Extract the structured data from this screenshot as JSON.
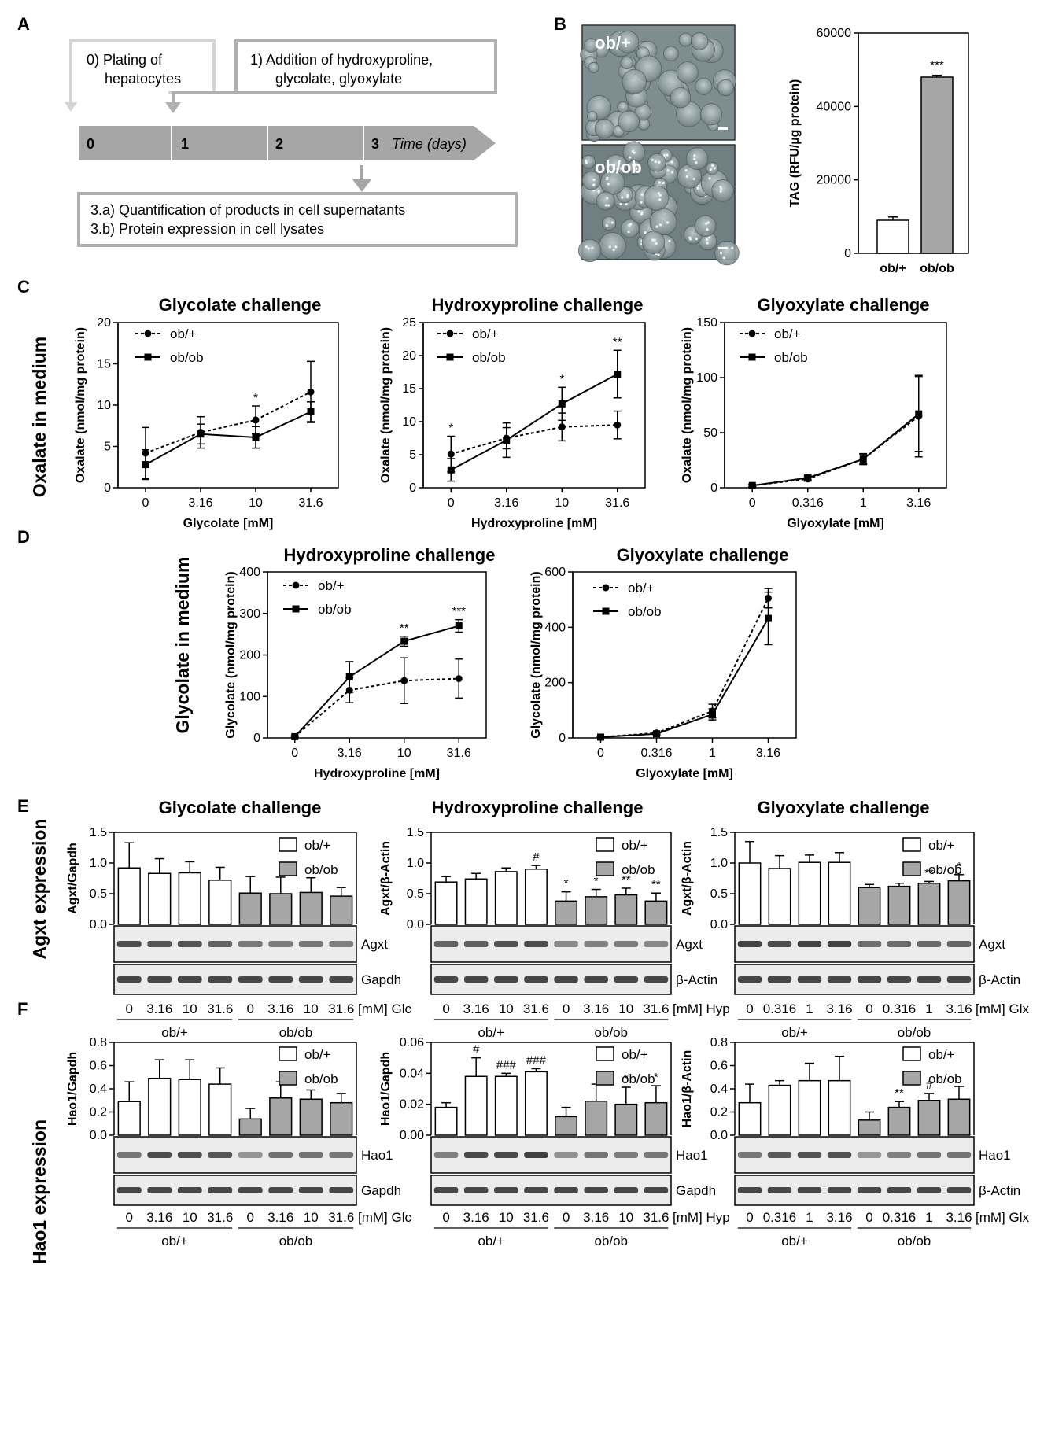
{
  "panel_labels": {
    "A": "A",
    "B": "B",
    "C": "C",
    "D": "D",
    "E": "E",
    "F": "F"
  },
  "timeline": {
    "step0": [
      "0) Plating of",
      "hepatocytes"
    ],
    "step1": [
      "1)  Addition of hydroxyproline,",
      "glycolate, glyoxylate"
    ],
    "step3": [
      "3.a)  Quantification of products in cell supernatants",
      "3.b)  Protein expression in  cell lysates"
    ],
    "days": [
      "0",
      "1",
      "2",
      "3"
    ],
    "time_label": "Time (days)"
  },
  "micrographs": [
    {
      "label": "ob/+"
    },
    {
      "label": "ob/ob"
    }
  ],
  "row_labels": {
    "C": "Oxalate in medium",
    "D": "Glycolate in medium",
    "E": "Agxt expression",
    "F": "Hao1 expression"
  },
  "colors": {
    "white_bar": "#ffffff",
    "grey_bar": "#a6a6a6",
    "blot_bg": "#ececec",
    "band": "#2a2a2a",
    "timeline": "#a6a6a6"
  },
  "chart_data": [
    {
      "id": "B",
      "type": "bar",
      "title": "",
      "ylabel": "TAG (RFU/µg protein)",
      "ylim": [
        0,
        60000
      ],
      "yticks": [
        "0",
        "20000",
        "40000",
        "60000"
      ],
      "categories": [
        "ob/+",
        "ob/ob"
      ],
      "values": [
        9000,
        48000
      ],
      "errors": [
        900,
        500
      ],
      "significance": [
        "",
        "***"
      ]
    },
    {
      "id": "C1",
      "type": "line",
      "title": "Glycolate challenge",
      "xlabel": "Glycolate [mM]",
      "ylabel": "Oxalate (nmol/mg protein)",
      "ylim": [
        0,
        20
      ],
      "yticks": [
        "0",
        "5",
        "10",
        "15",
        "20"
      ],
      "x": [
        "0",
        "3.16",
        "10",
        "31.6"
      ],
      "series": [
        {
          "name": "ob/+",
          "style": "dotted",
          "marker": "circle",
          "values": [
            4.2,
            6.7,
            8.2,
            11.6
          ],
          "errors": [
            3.1,
            1.9,
            1.7,
            3.7
          ]
        },
        {
          "name": "ob/ob",
          "style": "solid",
          "marker": "square",
          "values": [
            2.8,
            6.5,
            6.1,
            9.2
          ],
          "errors": [
            1.8,
            1.2,
            1.3,
            1.2
          ]
        }
      ],
      "significance": [
        "",
        "",
        "*",
        ""
      ]
    },
    {
      "id": "C2",
      "type": "line",
      "title": "Hydroxyproline  challenge",
      "xlabel": "Hydroxyproline [mM]",
      "ylabel": "Oxalate (nmol/mg protein)",
      "ylim": [
        0,
        25
      ],
      "yticks": [
        "0",
        "5",
        "10",
        "15",
        "20",
        "25"
      ],
      "x": [
        "0",
        "3.16",
        "10",
        "31.6"
      ],
      "series": [
        {
          "name": "ob/+",
          "style": "dotted",
          "marker": "circle",
          "values": [
            5.1,
            7.5,
            9.2,
            9.5
          ],
          "errors": [
            2.7,
            1.6,
            2.1,
            2.1
          ]
        },
        {
          "name": "ob/ob",
          "style": "solid",
          "marker": "square",
          "values": [
            2.7,
            7.2,
            12.7,
            17.2
          ],
          "errors": [
            1.7,
            2.6,
            2.5,
            3.6
          ]
        }
      ],
      "significance": [
        "*",
        "",
        "*",
        "**"
      ]
    },
    {
      "id": "C3",
      "type": "line",
      "title": "Glyoxylate challenge",
      "xlabel": "Glyoxylate [mM]",
      "ylabel": "Oxalate (nmol/mg protein)",
      "ylim": [
        0,
        150
      ],
      "yticks": [
        "0",
        "50",
        "100",
        "150"
      ],
      "x": [
        "0",
        "0.316",
        "1",
        "3.16"
      ],
      "series": [
        {
          "name": "ob/+",
          "style": "dotted",
          "marker": "circle",
          "values": [
            2,
            8,
            26,
            65
          ],
          "errors": [
            1,
            2,
            5,
            37
          ]
        },
        {
          "name": "ob/ob",
          "style": "solid",
          "marker": "square",
          "values": [
            2,
            9,
            26,
            67
          ],
          "errors": [
            1,
            2,
            4,
            34
          ]
        }
      ],
      "significance": [
        "",
        "",
        "",
        ""
      ]
    },
    {
      "id": "D1",
      "type": "line",
      "title": "Hydroxyproline  challenge",
      "xlabel": "Hydroxyproline [mM]",
      "ylabel": "Glycolate (nmol/mg protein)",
      "ylim": [
        0,
        400
      ],
      "yticks": [
        "0",
        "100",
        "200",
        "300",
        "400"
      ],
      "x": [
        "0",
        "3.16",
        "10",
        "31.6"
      ],
      "series": [
        {
          "name": "ob/+",
          "style": "dotted",
          "marker": "circle",
          "values": [
            3,
            115,
            138,
            143
          ],
          "errors": [
            2,
            30,
            55,
            47
          ]
        },
        {
          "name": "ob/ob",
          "style": "solid",
          "marker": "square",
          "values": [
            3,
            147,
            233,
            270
          ],
          "errors": [
            2,
            37,
            12,
            15
          ]
        }
      ],
      "significance": [
        "",
        "",
        "**",
        "***"
      ]
    },
    {
      "id": "D2",
      "type": "line",
      "title": "Glyoxylate challenge",
      "xlabel": "Glyoxylate [mM]",
      "ylabel": "Glycolate (nmol/mg protein)",
      "ylim": [
        0,
        600
      ],
      "yticks": [
        "0",
        "200",
        "400",
        "600"
      ],
      "x": [
        "0",
        "0.316",
        "1",
        "3.16"
      ],
      "series": [
        {
          "name": "ob/+",
          "style": "dotted",
          "marker": "circle",
          "values": [
            3,
            18,
            97,
            505
          ],
          "errors": [
            2,
            4,
            25,
            35
          ]
        },
        {
          "name": "ob/ob",
          "style": "solid",
          "marker": "square",
          "values": [
            3,
            15,
            85,
            432
          ],
          "errors": [
            2,
            4,
            20,
            95
          ]
        }
      ],
      "significance": [
        "",
        "",
        "",
        ""
      ]
    },
    {
      "id": "E1",
      "type": "bar",
      "title": "Glycolate challenge",
      "ylabel": "Agxt/Gapdh",
      "ylim": [
        0,
        1.5
      ],
      "yticks": [
        "0.0",
        "0.5",
        "1.0",
        "1.5"
      ],
      "series": [
        {
          "name": "ob/+",
          "values": [
            0.92,
            0.83,
            0.84,
            0.72
          ],
          "errors": [
            0.41,
            0.24,
            0.18,
            0.21
          ]
        },
        {
          "name": "ob/ob",
          "values": [
            0.51,
            0.5,
            0.52,
            0.46
          ],
          "errors": [
            0.27,
            0.27,
            0.24,
            0.14
          ]
        }
      ],
      "sig_ob_plus": [
        "",
        "",
        "",
        ""
      ],
      "sig_ob_ob": [
        "",
        "",
        "",
        ""
      ],
      "blot": {
        "protein": "Agxt",
        "loading": "Gapdh"
      },
      "lanes": [
        "0",
        "3.16",
        "10",
        "31.6",
        "0",
        "3.16",
        "10",
        "31.6"
      ],
      "unit": "[mM] Glc",
      "groups": [
        "ob/+",
        "ob/ob"
      ]
    },
    {
      "id": "E2",
      "type": "bar",
      "title": "Hydroxyproline  challenge",
      "ylabel": "Agxt/β-Actin",
      "ylim": [
        0,
        1.5
      ],
      "yticks": [
        "0.0",
        "0.5",
        "1.0",
        "1.5"
      ],
      "series": [
        {
          "name": "ob/+",
          "values": [
            0.69,
            0.74,
            0.86,
            0.9
          ],
          "errors": [
            0.09,
            0.09,
            0.06,
            0.06
          ]
        },
        {
          "name": "ob/ob",
          "values": [
            0.38,
            0.45,
            0.48,
            0.38
          ],
          "errors": [
            0.15,
            0.12,
            0.11,
            0.13
          ]
        }
      ],
      "sig_ob_plus": [
        "",
        "",
        "",
        "#"
      ],
      "sig_ob_ob": [
        "*",
        "*",
        "**",
        "**"
      ],
      "blot": {
        "protein": "Agxt",
        "loading": "β-Actin"
      },
      "lanes": [
        "0",
        "3.16",
        "10",
        "31.6",
        "0",
        "3.16",
        "10",
        "31.6"
      ],
      "unit": "[mM] Hyp",
      "groups": [
        "ob/+",
        "ob/ob"
      ]
    },
    {
      "id": "E3",
      "type": "bar",
      "title": "Glyoxylate challenge",
      "ylabel": "Agxt/β-Actin",
      "ylim": [
        0,
        1.5
      ],
      "yticks": [
        "0.0",
        "0.5",
        "1.0",
        "1.5"
      ],
      "series": [
        {
          "name": "ob/+",
          "values": [
            1.0,
            0.91,
            1.01,
            1.01
          ],
          "errors": [
            0.35,
            0.21,
            0.12,
            0.16
          ]
        },
        {
          "name": "ob/ob",
          "values": [
            0.6,
            0.62,
            0.67,
            0.71
          ],
          "errors": [
            0.05,
            0.05,
            0.03,
            0.1
          ]
        }
      ],
      "sig_ob_plus": [
        "",
        "",
        "",
        ""
      ],
      "sig_ob_ob": [
        "",
        "",
        "**",
        "*"
      ],
      "blot": {
        "protein": "Agxt",
        "loading": "β-Actin"
      },
      "lanes": [
        "0",
        "0.316",
        "1",
        "3.16",
        "0",
        "0.316",
        "1",
        "3.16"
      ],
      "unit": "[mM] Glx",
      "groups": [
        "ob/+",
        "ob/ob"
      ]
    },
    {
      "id": "F1",
      "type": "bar",
      "title": "",
      "ylabel": "Hao1/Gapdh",
      "ylim": [
        0,
        0.8
      ],
      "yticks": [
        "0.0",
        "0.2",
        "0.4",
        "0.6",
        "0.8"
      ],
      "series": [
        {
          "name": "ob/+",
          "values": [
            0.29,
            0.49,
            0.48,
            0.44
          ],
          "errors": [
            0.17,
            0.16,
            0.17,
            0.14
          ]
        },
        {
          "name": "ob/ob",
          "values": [
            0.14,
            0.32,
            0.31,
            0.28
          ],
          "errors": [
            0.09,
            0.14,
            0.08,
            0.08
          ]
        }
      ],
      "sig_ob_plus": [
        "",
        "",
        "",
        ""
      ],
      "sig_ob_ob": [
        "",
        "",
        "",
        ""
      ],
      "blot": {
        "protein": "Hao1",
        "loading": "Gapdh"
      },
      "lanes": [
        "0",
        "3.16",
        "10",
        "31.6",
        "0",
        "3.16",
        "10",
        "31.6"
      ],
      "unit": "[mM] Glc",
      "groups": [
        "ob/+",
        "ob/ob"
      ]
    },
    {
      "id": "F2",
      "type": "bar",
      "title": "",
      "ylabel": "Hao1/Gapdh",
      "ylim": [
        0,
        0.06
      ],
      "yticks": [
        "0.00",
        "0.02",
        "0.04",
        "0.06"
      ],
      "series": [
        {
          "name": "ob/+",
          "values": [
            0.018,
            0.038,
            0.038,
            0.041
          ],
          "errors": [
            0.003,
            0.012,
            0.002,
            0.002
          ]
        },
        {
          "name": "ob/ob",
          "values": [
            0.012,
            0.022,
            0.02,
            0.021
          ],
          "errors": [
            0.006,
            0.011,
            0.011,
            0.011
          ]
        }
      ],
      "sig_ob_plus": [
        "",
        "#",
        "###",
        "###"
      ],
      "sig_ob_ob": [
        "",
        "",
        "*",
        "*"
      ],
      "blot": {
        "protein": "Hao1",
        "loading": "Gapdh"
      },
      "lanes": [
        "0",
        "3.16",
        "10",
        "31.6",
        "0",
        "3.16",
        "10",
        "31.6"
      ],
      "unit": "[mM] Hyp",
      "groups": [
        "ob/+",
        "ob/ob"
      ]
    },
    {
      "id": "F3",
      "type": "bar",
      "title": "",
      "ylabel": "Hao1/β-Actin",
      "ylim": [
        0,
        0.8
      ],
      "yticks": [
        "0.0",
        "0.2",
        "0.4",
        "0.6",
        "0.8"
      ],
      "series": [
        {
          "name": "ob/+",
          "values": [
            0.28,
            0.43,
            0.47,
            0.47
          ],
          "errors": [
            0.16,
            0.04,
            0.15,
            0.21
          ]
        },
        {
          "name": "ob/ob",
          "values": [
            0.13,
            0.24,
            0.3,
            0.31
          ],
          "errors": [
            0.07,
            0.05,
            0.06,
            0.11
          ]
        }
      ],
      "sig_ob_plus": [
        "",
        "",
        "",
        ""
      ],
      "sig_ob_ob": [
        "",
        "**",
        "#",
        ""
      ],
      "blot": {
        "protein": "Hao1",
        "loading": "β-Actin"
      },
      "lanes": [
        "0",
        "0.316",
        "1",
        "3.16",
        "0",
        "0.316",
        "1",
        "3.16"
      ],
      "unit": "[mM] Glx",
      "groups": [
        "ob/+",
        "ob/ob"
      ]
    }
  ]
}
